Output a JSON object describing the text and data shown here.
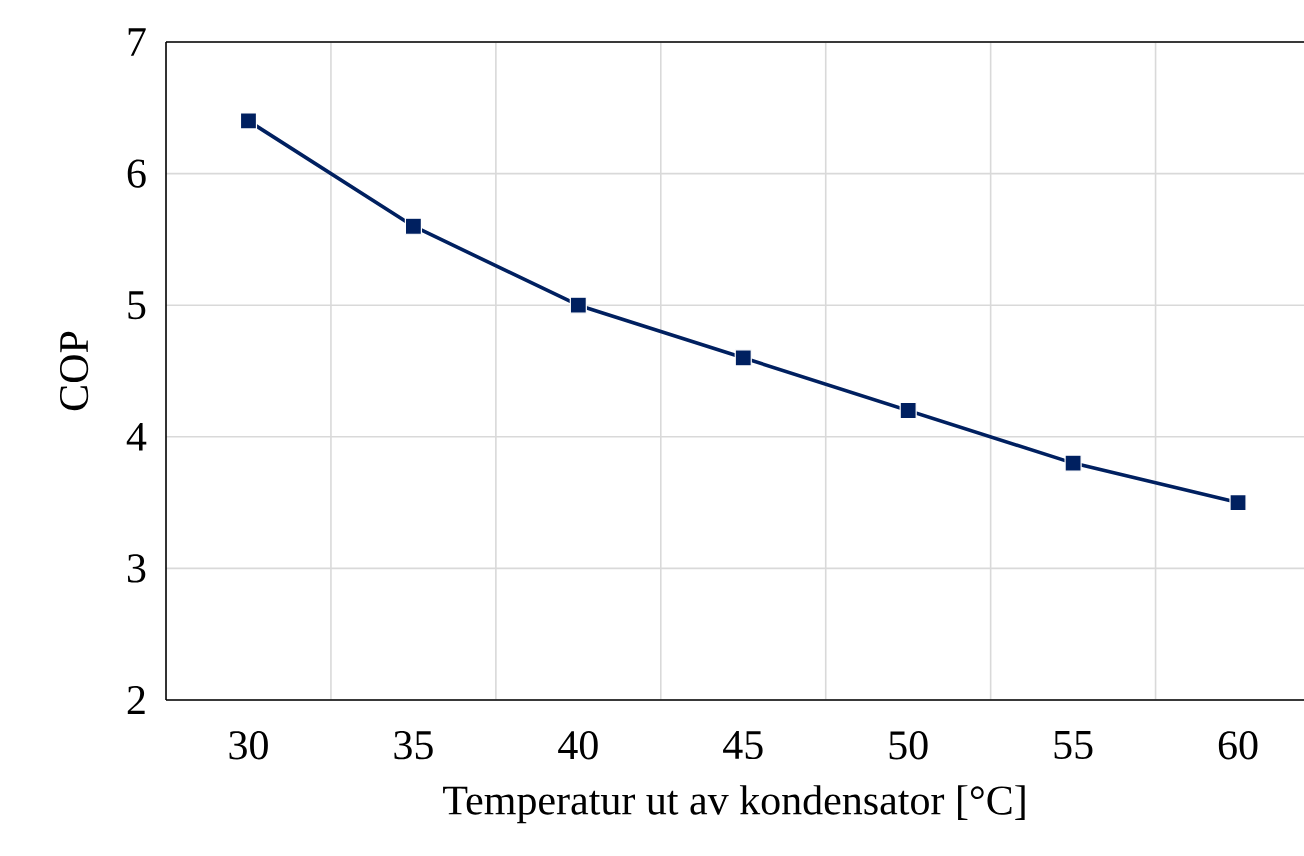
{
  "chart_data": {
    "type": "line",
    "xlabel": "Temperatur ut av kondensator [°C]",
    "ylabel": "COP",
    "categories": [
      "30",
      "35",
      "40",
      "45",
      "50",
      "55",
      "60"
    ],
    "series": [
      {
        "color": "#002060",
        "values": [
          6.4,
          5.6,
          5.0,
          4.6,
          4.2,
          3.8,
          3.5
        ]
      }
    ],
    "ylim": [
      2,
      7
    ],
    "yticks": [
      2,
      3,
      4,
      5,
      6,
      7
    ],
    "grid": true,
    "marker": "square",
    "line_style": "solid"
  }
}
